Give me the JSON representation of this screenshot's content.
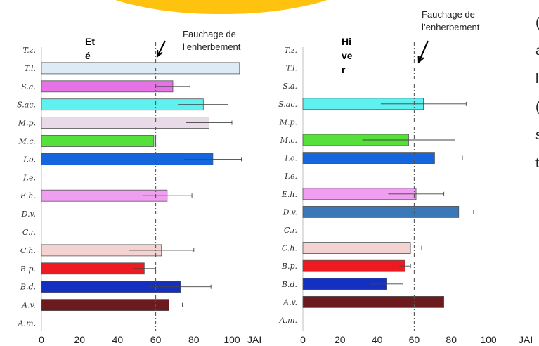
{
  "chart_data": [
    {
      "type": "bar",
      "orientation": "horizontal",
      "panel": "summer",
      "title": "Et\né",
      "xlabel": "JAI",
      "xlim": [
        0,
        105
      ],
      "xticks": [
        0,
        20,
        40,
        60,
        80,
        100
      ],
      "grid": false,
      "categories": [
        "T.z.",
        "T.l.",
        "S.a.",
        "S.ac.",
        "M.p.",
        "M.c.",
        "I.o.",
        "I.e.",
        "E.h.",
        "D.v.",
        "C.r.",
        "C.h.",
        "B.p.",
        "B.d.",
        "A.v.",
        "A.m."
      ],
      "values": [
        null,
        104,
        69,
        85,
        88,
        59,
        90,
        null,
        66,
        null,
        null,
        63,
        54,
        73,
        67,
        null
      ],
      "errors": [
        null,
        null,
        9,
        13,
        12,
        1,
        15,
        null,
        13,
        null,
        null,
        17,
        6,
        16,
        7,
        null
      ],
      "colors": [
        "#ffffff",
        "#dcebf5",
        "#e673e6",
        "#5ff0f0",
        "#e8dae6",
        "#55e03a",
        "#1566dd",
        "#ffffff",
        "#ef9ef0",
        "#ffffff",
        "#ffffff",
        "#f5d2d2",
        "#ee1a22",
        "#1430c0",
        "#6b1a1e",
        "#ffffff"
      ],
      "reference_line": {
        "x": 60,
        "label": "Fauchage de\nl’enherbement"
      }
    },
    {
      "type": "bar",
      "orientation": "horizontal",
      "panel": "winter",
      "title": "Hi\nve\nr",
      "xlabel": "JAI",
      "xlim": [
        0,
        105
      ],
      "xticks": [
        0,
        20,
        40,
        60,
        80,
        100
      ],
      "grid": false,
      "categories": [
        "T.z.",
        "T.l.",
        "S.a.",
        "S.ac.",
        "M.p.",
        "M.c.",
        "I.o.",
        "I.e.",
        "E.h.",
        "D.v.",
        "C.r.",
        "C.h.",
        "B.p.",
        "B.d.",
        "A.v.",
        "A.m."
      ],
      "values": [
        null,
        null,
        null,
        65,
        null,
        57,
        71,
        null,
        61,
        84,
        null,
        58,
        55,
        45,
        76,
        null
      ],
      "errors": [
        null,
        null,
        null,
        23,
        null,
        25,
        15,
        null,
        15,
        8,
        null,
        6,
        3,
        9,
        20,
        null
      ],
      "colors": [
        "#ffffff",
        "#ffffff",
        "#ffffff",
        "#5ff0f0",
        "#ffffff",
        "#55e03a",
        "#1566dd",
        "#ffffff",
        "#ef9ef0",
        "#3b78b8",
        "#ffffff",
        "#f5d2d2",
        "#ee1a22",
        "#1430c0",
        "#6b1a1e",
        "#ffffff"
      ],
      "reference_line": {
        "x": 60,
        "label": "Fauchage de\nl’enherbement"
      }
    }
  ],
  "side_text": [
    "(",
    "a",
    "l",
    "(",
    "s",
    "t"
  ]
}
